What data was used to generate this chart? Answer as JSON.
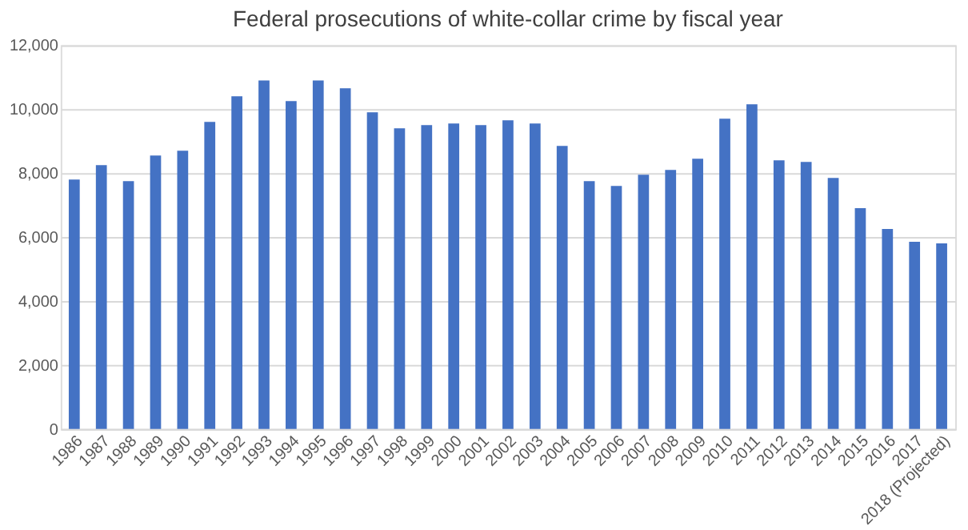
{
  "chart_data": {
    "type": "bar",
    "title": "Federal prosecutions of white-collar crime by fiscal year",
    "categories": [
      "1986",
      "1987",
      "1988",
      "1989",
      "1990",
      "1991",
      "1992",
      "1993",
      "1994",
      "1995",
      "1996",
      "1997",
      "1998",
      "1999",
      "2000",
      "2001",
      "2002",
      "2003",
      "2004",
      "2005",
      "2006",
      "2007",
      "2008",
      "2009",
      "2010",
      "2011",
      "2012",
      "2013",
      "2014",
      "2015",
      "2016",
      "2017",
      "2018 (Projected)"
    ],
    "values": [
      7800,
      8250,
      7750,
      8550,
      8700,
      9600,
      10400,
      10900,
      10250,
      10900,
      10650,
      9900,
      9400,
      9500,
      9550,
      9500,
      9650,
      9550,
      8850,
      7750,
      7600,
      7950,
      8100,
      8450,
      9700,
      10150,
      8400,
      8350,
      7850,
      6900,
      6250,
      5850,
      5800
    ],
    "color": "#4472c4",
    "ylim": [
      0,
      12000
    ],
    "yticks": [
      {
        "value": 0,
        "label": "0"
      },
      {
        "value": 2000,
        "label": "2,000"
      },
      {
        "value": 4000,
        "label": "4,000"
      },
      {
        "value": 6000,
        "label": "6,000"
      },
      {
        "value": 8000,
        "label": "8,000"
      },
      {
        "value": 10000,
        "label": "10,000"
      },
      {
        "value": 12000,
        "label": "12,000"
      }
    ],
    "grid": "y"
  }
}
